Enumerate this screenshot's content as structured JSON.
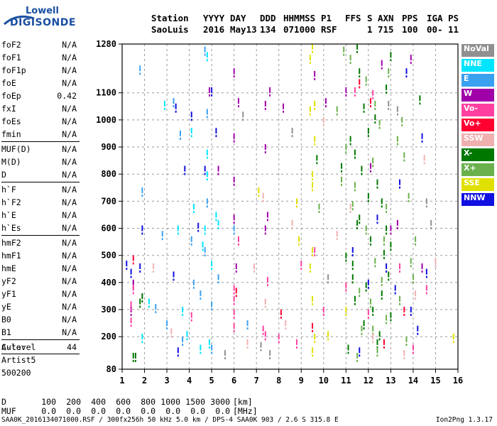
{
  "logo": {
    "line1": "Lowell",
    "line2": "DIGISONDE",
    "color": "#1a4fa0"
  },
  "header": {
    "row1": [
      "Station",
      "YYYY",
      "DAY",
      "DDD",
      "HHMMSS",
      "P1",
      "FFS",
      "S",
      "AXN",
      "PPS",
      "IGA",
      "PS"
    ],
    "row2": [
      "SaoLuis",
      "2016",
      "May13",
      "134",
      "071000",
      "RSF",
      "",
      "1",
      "715",
      "100",
      "00-",
      "11"
    ]
  },
  "params": {
    "group1": [
      {
        "name": "foF2",
        "value": "N/A"
      },
      {
        "name": "foF1",
        "value": "N/A"
      },
      {
        "name": "foF1p",
        "value": "N/A"
      },
      {
        "name": "foE",
        "value": "N/A"
      },
      {
        "name": "foEp",
        "value": "0.42"
      },
      {
        "name": "fxI",
        "value": "N/A"
      },
      {
        "name": "foEs",
        "value": "N/A"
      },
      {
        "name": "fmin",
        "value": "N/A"
      }
    ],
    "group2": [
      {
        "name": "MUF(D)",
        "value": "N/A"
      },
      {
        "name": "M(D)",
        "value": "N/A"
      },
      {
        "name": "D",
        "value": "N/A"
      }
    ],
    "group3": [
      {
        "name": "h`F",
        "value": "N/A"
      },
      {
        "name": "h`F2",
        "value": "N/A"
      },
      {
        "name": "h`E",
        "value": "N/A"
      },
      {
        "name": "h`Es",
        "value": "N/A"
      }
    ],
    "group4": [
      {
        "name": "hmF2",
        "value": "N/A"
      },
      {
        "name": "hmF1",
        "value": "N/A"
      },
      {
        "name": "hmE",
        "value": "N/A"
      },
      {
        "name": "yF2",
        "value": "N/A"
      },
      {
        "name": "yF1",
        "value": "N/A"
      },
      {
        "name": "yE",
        "value": "N/A"
      },
      {
        "name": "B0",
        "value": "N/A"
      },
      {
        "name": "B1",
        "value": "N/A"
      }
    ],
    "clevel": {
      "name": "C-level",
      "value": "44"
    }
  },
  "auto": {
    "line1": "Auto:",
    "line2": "Artist5",
    "line3": "500200"
  },
  "legend": [
    {
      "label": "NoVal",
      "color": "#909090"
    },
    {
      "label": "NNE",
      "color": "#00e5ff"
    },
    {
      "label": "E",
      "color": "#3aa0f0"
    },
    {
      "label": "W",
      "color": "#a000a8"
    },
    {
      "label": "Vo-",
      "color": "#ff40a0"
    },
    {
      "label": "Vo+",
      "color": "#ff0030"
    },
    {
      "label": "SSW",
      "color": "#f0b0b0"
    },
    {
      "label": "X-",
      "color": "#007800"
    },
    {
      "label": "X+",
      "color": "#6ab04c"
    },
    {
      "label": "SSE",
      "color": "#e0e000"
    },
    {
      "label": "NNW",
      "color": "#1010e0"
    }
  ],
  "dtable": {
    "row1": {
      "label": "D",
      "values": [
        "100",
        "200",
        "400",
        "600",
        "800",
        "1000",
        "1500",
        "3000"
      ],
      "unit": "[km]"
    },
    "row2": {
      "label": "MUF",
      "values": [
        "0.0",
        "0.0",
        "0.0",
        "0.0",
        "0.0",
        "0.0",
        "0.0",
        "0.0"
      ],
      "unit": "[MHz]"
    }
  },
  "footer": "SAA0K_2016134071000.RSF / 300fx256h 50 kHz 5.0 km / DPS-4 SAA0K 903 / 2.6 S 315.8 E",
  "version": "Ion2Png 1.3.17",
  "chart_data": {
    "type": "scatter",
    "xlim": [
      1,
      16
    ],
    "ylim": [
      80,
      1280
    ],
    "xticks": [
      1,
      2,
      3,
      4,
      5,
      6,
      7,
      8,
      9,
      10,
      11,
      12,
      13,
      14,
      15,
      16
    ],
    "yticks": [
      80,
      200,
      300,
      400,
      500,
      600,
      700,
      800,
      900,
      1000,
      1100,
      1280
    ],
    "grid": "dashed",
    "legend_position": "right",
    "series": [
      {
        "color": "#007800",
        "points": [
          [
            11.5,
            1270
          ],
          [
            11.6,
            1180
          ],
          [
            11.8,
            1050
          ],
          [
            12.0,
            960
          ],
          [
            11.4,
            880
          ],
          [
            11.7,
            820
          ],
          [
            12.4,
            770
          ],
          [
            12.6,
            700
          ],
          [
            11.5,
            620
          ],
          [
            12.1,
            560
          ],
          [
            12.7,
            510
          ],
          [
            11.3,
            470
          ],
          [
            12.9,
            430
          ],
          [
            11.9,
            390
          ],
          [
            11.4,
            340
          ],
          [
            12.2,
            300
          ],
          [
            11.8,
            250
          ],
          [
            12.5,
            210
          ],
          [
            11.1,
            160
          ],
          [
            13.0,
            1240
          ],
          [
            12.8,
            1120
          ],
          [
            12.3,
            1010
          ],
          [
            11.2,
            930
          ],
          [
            12.0,
            720
          ],
          [
            11.6,
            640
          ],
          [
            12.8,
            600
          ],
          [
            13.0,
            540
          ],
          [
            11.0,
            500
          ],
          [
            12.6,
            360
          ],
          [
            1.8,
            330
          ],
          [
            1.9,
            350
          ],
          [
            1.5,
            130
          ],
          [
            1.6,
            130
          ],
          [
            9.7,
            860
          ],
          [
            10.8,
            830
          ],
          [
            11.3,
            420
          ],
          [
            12.4,
            180
          ],
          [
            13.0,
            280
          ],
          [
            14.3,
            1080
          ]
        ]
      },
      {
        "color": "#6ab04c",
        "points": [
          [
            11.2,
            1230
          ],
          [
            11.9,
            1150
          ],
          [
            12.3,
            1060
          ],
          [
            12.5,
            990
          ],
          [
            11.0,
            900
          ],
          [
            12.2,
            850
          ],
          [
            11.4,
            760
          ],
          [
            12.8,
            680
          ],
          [
            11.9,
            600
          ],
          [
            12.3,
            480
          ],
          [
            12.6,
            410
          ],
          [
            11.6,
            370
          ],
          [
            12.1,
            330
          ],
          [
            12.8,
            270
          ],
          [
            11.7,
            230
          ],
          [
            12.4,
            150
          ],
          [
            13.5,
            1000
          ],
          [
            13.6,
            870
          ],
          [
            13.8,
            720
          ],
          [
            14.1,
            560
          ],
          [
            14.0,
            420
          ],
          [
            13.4,
            340
          ],
          [
            13.7,
            190
          ],
          [
            10.9,
            1260
          ],
          [
            10.6,
            1040
          ],
          [
            12.9,
            1180
          ],
          [
            13.3,
            930
          ],
          [
            11.3,
            690
          ],
          [
            12.7,
            560
          ],
          [
            13.9,
            480
          ],
          [
            12.2,
            230
          ],
          [
            11.5,
            130
          ],
          [
            10.8,
            780
          ],
          [
            9.8,
            680
          ]
        ]
      },
      {
        "color": "#1010e0",
        "points": [
          [
            3.4,
            1050
          ],
          [
            3.8,
            820
          ],
          [
            4.4,
            610
          ],
          [
            5.0,
            1110
          ],
          [
            5.2,
            960
          ],
          [
            1.2,
            470
          ],
          [
            1.4,
            440
          ],
          [
            1.8,
            460
          ],
          [
            1.9,
            600
          ],
          [
            12.8,
            460
          ],
          [
            13.2,
            380
          ],
          [
            13.9,
            300
          ],
          [
            14.6,
            440
          ],
          [
            11.3,
            520
          ],
          [
            12.4,
            640
          ],
          [
            14.4,
            940
          ],
          [
            13.7,
            1180
          ],
          [
            3.5,
            150
          ],
          [
            4.1,
            1020
          ],
          [
            4.7,
            820
          ],
          [
            3.3,
            430
          ],
          [
            13.4,
            770
          ],
          [
            12.0,
            400
          ],
          [
            14.2,
            230
          ],
          [
            11.6,
            150
          ]
        ]
      },
      {
        "color": "#a000a8",
        "points": [
          [
            6.0,
            1180
          ],
          [
            6.2,
            1070
          ],
          [
            7.4,
            1060
          ],
          [
            7.6,
            1110
          ],
          [
            7.4,
            900
          ],
          [
            7.4,
            600
          ],
          [
            7.5,
            650
          ],
          [
            6.0,
            940
          ],
          [
            6.0,
            780
          ],
          [
            6.0,
            640
          ],
          [
            1.5,
            400
          ],
          [
            1.4,
            300
          ],
          [
            6.1,
            460
          ],
          [
            8.2,
            1050
          ],
          [
            9.6,
            1170
          ],
          [
            11.0,
            1110
          ],
          [
            10.1,
            1070
          ],
          [
            5.3,
            820
          ],
          [
            4.9,
            1110
          ],
          [
            12.6,
            1210
          ],
          [
            13.0,
            600
          ],
          [
            13.9,
            1230
          ],
          [
            14.4,
            460
          ],
          [
            13.3,
            620
          ],
          [
            12.1,
            830
          ]
        ]
      },
      {
        "color": "#ff40a0",
        "points": [
          [
            1.4,
            320
          ],
          [
            1.5,
            380
          ],
          [
            1.4,
            260
          ],
          [
            6.0,
            380
          ],
          [
            6.0,
            340
          ],
          [
            6.0,
            290
          ],
          [
            6.0,
            240
          ],
          [
            7.3,
            230
          ],
          [
            7.4,
            210
          ],
          [
            7.5,
            410
          ],
          [
            8.0,
            200
          ],
          [
            9.0,
            470
          ],
          [
            9.6,
            520
          ],
          [
            11.0,
            390
          ],
          [
            12.0,
            290
          ],
          [
            13.4,
            460
          ],
          [
            14.6,
            380
          ],
          [
            10.0,
            300
          ],
          [
            8.8,
            180
          ],
          [
            6.2,
            560
          ],
          [
            11.4,
            1110
          ],
          [
            12.2,
            1100
          ],
          [
            4.1,
            280
          ],
          [
            14.0,
            160
          ]
        ]
      },
      {
        "color": "#ff0030",
        "points": [
          [
            1.5,
            490
          ],
          [
            11.6,
            1140
          ],
          [
            12.1,
            1070
          ],
          [
            6.1,
            370
          ],
          [
            9.5,
            240
          ],
          [
            13.6,
            300
          ],
          [
            12.7,
            180
          ],
          [
            8.1,
            290
          ]
        ]
      },
      {
        "color": "#e0e000",
        "points": [
          [
            9.5,
            1270
          ],
          [
            9.4,
            1040
          ],
          [
            9.6,
            1060
          ],
          [
            9.5,
            800
          ],
          [
            9.5,
            760
          ],
          [
            9.5,
            520
          ],
          [
            9.4,
            460
          ],
          [
            9.6,
            200
          ],
          [
            9.5,
            150
          ],
          [
            9.4,
            1230
          ],
          [
            8.8,
            700
          ],
          [
            10.2,
            210
          ],
          [
            11.0,
            300
          ],
          [
            9.5,
            340
          ],
          [
            7.1,
            740
          ],
          [
            8.9,
            560
          ],
          [
            15.8,
            200
          ],
          [
            9.6,
            930
          ]
        ]
      },
      {
        "color": "#3aa0f0",
        "points": [
          [
            1.8,
            1190
          ],
          [
            3.3,
            1070
          ],
          [
            4.7,
            520
          ],
          [
            4.5,
            360
          ],
          [
            5.0,
            320
          ],
          [
            4.8,
            700
          ],
          [
            6.0,
            600
          ],
          [
            5.3,
            420
          ],
          [
            1.9,
            740
          ],
          [
            2.5,
            310
          ],
          [
            3.0,
            250
          ],
          [
            3.7,
            190
          ],
          [
            4.7,
            1260
          ],
          [
            6.6,
            250
          ],
          [
            4.2,
            400
          ],
          [
            2.8,
            580
          ],
          [
            5.0,
            160
          ],
          [
            3.6,
            950
          ],
          [
            4.1,
            560
          ],
          [
            4.8,
            1030
          ]
        ]
      },
      {
        "color": "#00e5ff",
        "points": [
          [
            4.8,
            1240
          ],
          [
            5.3,
            620
          ],
          [
            4.6,
            540
          ],
          [
            4.7,
            600
          ],
          [
            4.8,
            880
          ],
          [
            4.2,
            680
          ],
          [
            3.9,
            210
          ],
          [
            4.5,
            160
          ],
          [
            3.7,
            300
          ],
          [
            2.2,
            330
          ],
          [
            4.8,
            800
          ],
          [
            5.0,
            470
          ],
          [
            5.2,
            650
          ],
          [
            3.5,
            600
          ],
          [
            4.9,
            180
          ],
          [
            1.9,
            200
          ],
          [
            4.1,
            960
          ],
          [
            2.9,
            1060
          ]
        ]
      },
      {
        "color": "#f0b0b0",
        "points": [
          [
            7.3,
            720
          ],
          [
            7.4,
            330
          ],
          [
            6.6,
            180
          ],
          [
            8.3,
            250
          ],
          [
            10.6,
            580
          ],
          [
            11.2,
            680
          ],
          [
            12.2,
            200
          ],
          [
            13.6,
            140
          ],
          [
            14.5,
            860
          ],
          [
            14.1,
            360
          ],
          [
            6.9,
            460
          ],
          [
            8.6,
            620
          ],
          [
            10.0,
            1000
          ],
          [
            15.0,
            480
          ],
          [
            3.2,
            220
          ],
          [
            2.4,
            460
          ]
        ]
      },
      {
        "color": "#909090",
        "points": [
          [
            7.2,
            170
          ],
          [
            7.6,
            140
          ],
          [
            8.6,
            960
          ],
          [
            10.2,
            420
          ],
          [
            13.3,
            1040
          ],
          [
            14.8,
            620
          ],
          [
            6.4,
            1020
          ],
          [
            5.6,
            140
          ],
          [
            12.9,
            1060
          ],
          [
            14.6,
            700
          ]
        ]
      }
    ]
  }
}
